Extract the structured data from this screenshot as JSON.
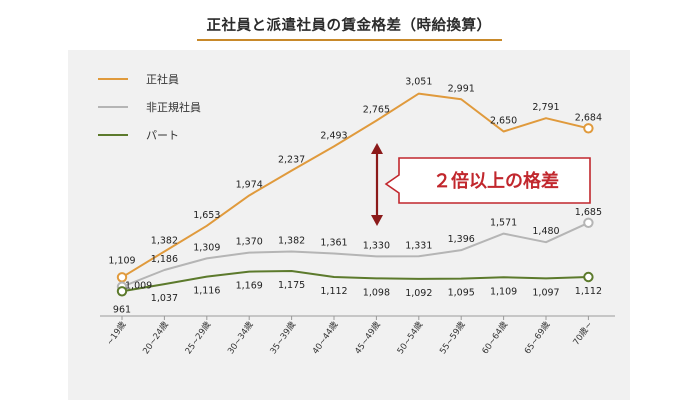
{
  "title": "正社員と派遣社員の賃金格差（時給換算）",
  "colors": {
    "regular": "#e09a3c",
    "nonregular": "#b5b5b5",
    "parttime": "#5c7a2c",
    "accent": "#c1272d",
    "title_underline": "#c8892a"
  },
  "callout": {
    "text": "２倍以上の格差"
  },
  "chart_data": {
    "type": "line",
    "categories": [
      "~19歳",
      "20~24歳",
      "25~29歳",
      "30~34歳",
      "35~39歳",
      "40~44歳",
      "45~49歳",
      "50~54歳",
      "55~59歳",
      "60~64歳",
      "65~69歳",
      "70歳~"
    ],
    "series": [
      {
        "name": "正社員",
        "values": [
          1109,
          1382,
          1653,
          1974,
          2237,
          2493,
          2765,
          3051,
          2991,
          2650,
          2791,
          2684
        ]
      },
      {
        "name": "非正規社員",
        "values": [
          1009,
          1186,
          1309,
          1370,
          1382,
          1361,
          1330,
          1331,
          1396,
          1571,
          1480,
          1685
        ]
      },
      {
        "name": "パート",
        "values": [
          961,
          1037,
          1116,
          1169,
          1175,
          1112,
          1098,
          1092,
          1095,
          1109,
          1097,
          1112
        ]
      }
    ],
    "legend_position": "top-left"
  }
}
